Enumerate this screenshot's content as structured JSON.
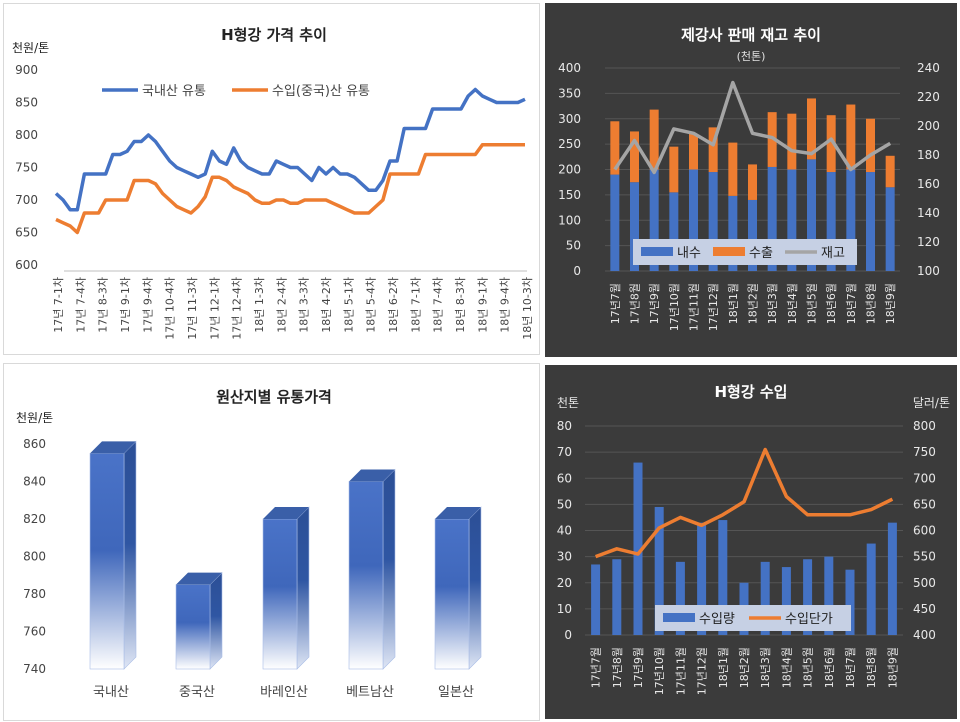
{
  "chart_data": [
    {
      "type": "line",
      "title": "H형강 가격 추이",
      "unit_label": "천원/톤",
      "ylim": [
        600,
        900
      ],
      "yticks": [
        "600",
        "650",
        "700",
        "750",
        "800",
        "850",
        "900"
      ],
      "x_tick_labels": [
        "17년 7-1차",
        "17년 7-4차",
        "17년 8-3차",
        "17년 9-1차",
        "17년 9-4차",
        "17년 10-4차",
        "17년 11-3차",
        "17년 12-1차",
        "17년 12-4차",
        "18년 1-3차",
        "18년 2-4차",
        "18년 3-3차",
        "18년 4-2차",
        "18년 5-1차",
        "18년 5-4차",
        "18년 6-2차",
        "18년 7-1차",
        "18년 7-4차",
        "18년 8-3차",
        "18년 9-1차",
        "18년 9-4차",
        "18년 10-3차"
      ],
      "legend_position": "top",
      "grid": false,
      "series": [
        {
          "name": "국내산 유통",
          "color": "#4472c4",
          "values": [
            710,
            700,
            685,
            685,
            740,
            740,
            740,
            740,
            770,
            770,
            775,
            790,
            790,
            800,
            790,
            775,
            760,
            750,
            745,
            740,
            735,
            740,
            775,
            760,
            755,
            780,
            760,
            750,
            745,
            740,
            740,
            760,
            755,
            750,
            750,
            740,
            730,
            750,
            740,
            750,
            740,
            740,
            735,
            725,
            715,
            715,
            730,
            760,
            760,
            810,
            810,
            810,
            810,
            840,
            840,
            840,
            840,
            840,
            860,
            870,
            860,
            855,
            850,
            850,
            850,
            850,
            855
          ]
        },
        {
          "name": "수입(중국)산 유통",
          "color": "#ed7d31",
          "values": [
            670,
            665,
            660,
            650,
            680,
            680,
            680,
            700,
            700,
            700,
            700,
            730,
            730,
            730,
            725,
            710,
            700,
            690,
            685,
            680,
            690,
            705,
            735,
            735,
            730,
            720,
            715,
            710,
            700,
            695,
            695,
            700,
            700,
            695,
            695,
            700,
            700,
            700,
            700,
            695,
            690,
            685,
            680,
            680,
            680,
            690,
            700,
            740,
            740,
            740,
            740,
            740,
            770,
            770,
            770,
            770,
            770,
            770,
            770,
            770,
            785,
            785,
            785,
            785,
            785,
            785,
            785
          ]
        }
      ]
    },
    {
      "type": "bar",
      "title": "제강사 판매 재고 추이",
      "subtitle": "(천톤)",
      "categories": [
        "17년7월",
        "17년8월",
        "17년9월",
        "17년10월",
        "17년11월",
        "17년12월",
        "18년1월",
        "18년2월",
        "18년3월",
        "18년4월",
        "18년5월",
        "18년6월",
        "18년7월",
        "18년8월",
        "18년9월"
      ],
      "ylim": [
        0,
        400
      ],
      "yticks": [
        "0",
        "50",
        "100",
        "150",
        "200",
        "250",
        "300",
        "350",
        "400"
      ],
      "y2lim": [
        100,
        240
      ],
      "y2ticks": [
        "100",
        "120",
        "140",
        "160",
        "180",
        "200",
        "220",
        "240"
      ],
      "stacked": true,
      "legend_position": "bottom",
      "series": [
        {
          "name": "내수",
          "color": "#4472c4",
          "values": [
            190,
            175,
            200,
            155,
            200,
            195,
            148,
            140,
            205,
            200,
            220,
            195,
            200,
            195,
            165
          ]
        },
        {
          "name": "수출",
          "color": "#ed7d31",
          "values": [
            105,
            100,
            118,
            90,
            70,
            88,
            105,
            70,
            108,
            110,
            120,
            112,
            128,
            105,
            62
          ]
        },
        {
          "name": "재고",
          "color": "#a5a5a5",
          "axis": "secondary",
          "values": [
            170,
            190,
            168,
            198,
            195,
            187,
            230,
            195,
            192,
            183,
            181,
            191,
            170,
            180,
            188
          ]
        }
      ]
    },
    {
      "type": "bar",
      "title": "원산지별 유통가격",
      "unit_label": "천원/톤",
      "categories": [
        "국내산",
        "중국산",
        "바레인산",
        "베트남산",
        "일본산"
      ],
      "values": [
        855,
        785,
        820,
        840,
        820
      ],
      "ylim": [
        740,
        860
      ],
      "yticks": [
        "740",
        "760",
        "780",
        "800",
        "820",
        "840",
        "860"
      ],
      "grid": false,
      "color": "#4472c4"
    },
    {
      "type": "bar",
      "title": "H형강 수입",
      "unit_label": "천톤",
      "unit2_label": "달러/톤",
      "categories": [
        "17년7월",
        "17년8월",
        "17년9월",
        "17년10월",
        "17년11월",
        "17년12월",
        "18년1월",
        "18년2월",
        "18년3월",
        "18년4월",
        "18년5월",
        "18년6월",
        "18년7월",
        "18년8월",
        "18년9월"
      ],
      "ylim": [
        0,
        80
      ],
      "yticks": [
        "0",
        "10",
        "20",
        "30",
        "40",
        "50",
        "60",
        "70",
        "80"
      ],
      "y2lim": [
        400,
        800
      ],
      "y2ticks": [
        "400",
        "450",
        "500",
        "550",
        "600",
        "650",
        "700",
        "750",
        "800"
      ],
      "legend_position": "bottom",
      "series": [
        {
          "name": "수입량",
          "color": "#4472c4",
          "values": [
            27,
            29,
            66,
            49,
            28,
            43,
            44,
            20,
            28,
            26,
            29,
            30,
            25,
            35,
            43
          ]
        },
        {
          "name": "수입단가",
          "color": "#ed7d31",
          "axis": "secondary",
          "values": [
            550,
            565,
            555,
            605,
            625,
            610,
            630,
            655,
            755,
            665,
            630,
            630,
            630,
            640,
            660
          ]
        }
      ]
    }
  ]
}
